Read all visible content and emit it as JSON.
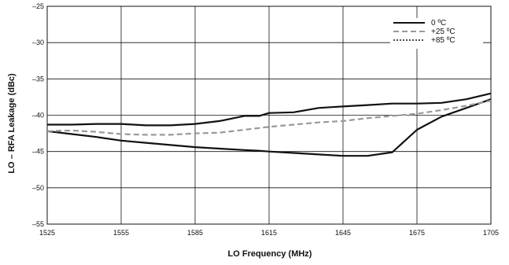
{
  "chart_data": {
    "type": "line",
    "title": "",
    "xlabel": "LO Frequency (MHz)",
    "ylabel": "LO – RFA Leakage (dBc)",
    "xlim": [
      1525,
      1705
    ],
    "ylim": [
      -55,
      -25
    ],
    "xticks": [
      1525,
      1555,
      1585,
      1615,
      1645,
      1675,
      1705
    ],
    "yticks": [
      -25,
      -30,
      -35,
      -40,
      -45,
      -50,
      -55
    ],
    "grid": true,
    "legend_position": "top-right",
    "series": [
      {
        "name": "0 ºC",
        "style": "solid",
        "color": "#111111",
        "x": [
          1525,
          1535,
          1545,
          1555,
          1565,
          1575,
          1585,
          1595,
          1605,
          1611,
          1615,
          1625,
          1635,
          1645,
          1655,
          1665,
          1675,
          1685,
          1695,
          1705
        ],
        "y": [
          -42.2,
          -42.6,
          -43.0,
          -43.5,
          -43.8,
          -44.1,
          -44.4,
          -44.6,
          -44.8,
          -44.9,
          -45.0,
          -45.2,
          -45.4,
          -45.6,
          -45.6,
          -45.1,
          -42.0,
          -40.2,
          -39.0,
          -37.8
        ]
      },
      {
        "name": "+25 ºC",
        "style": "dashed",
        "color": "#999999",
        "x": [
          1525,
          1535,
          1545,
          1555,
          1565,
          1575,
          1585,
          1595,
          1605,
          1615,
          1625,
          1635,
          1645,
          1655,
          1665,
          1675,
          1685,
          1695,
          1705
        ],
        "y": [
          -42.2,
          -42.1,
          -42.3,
          -42.6,
          -42.7,
          -42.7,
          -42.5,
          -42.4,
          -42.0,
          -41.6,
          -41.3,
          -41.0,
          -40.8,
          -40.4,
          -40.1,
          -39.8,
          -39.3,
          -38.7,
          -38.0
        ]
      },
      {
        "name": "+85 ºC",
        "style": "solid",
        "color": "#111111",
        "x": [
          1525,
          1535,
          1545,
          1555,
          1565,
          1575,
          1585,
          1595,
          1605,
          1611,
          1615,
          1625,
          1635,
          1640,
          1645,
          1655,
          1665,
          1675,
          1685,
          1695,
          1705
        ],
        "y": [
          -41.3,
          -41.3,
          -41.2,
          -41.2,
          -41.4,
          -41.4,
          -41.2,
          -40.8,
          -40.1,
          -40.1,
          -39.7,
          -39.6,
          -39.0,
          -38.9,
          -38.8,
          -38.6,
          -38.4,
          -38.4,
          -38.3,
          -37.8,
          -37.0
        ]
      }
    ]
  }
}
